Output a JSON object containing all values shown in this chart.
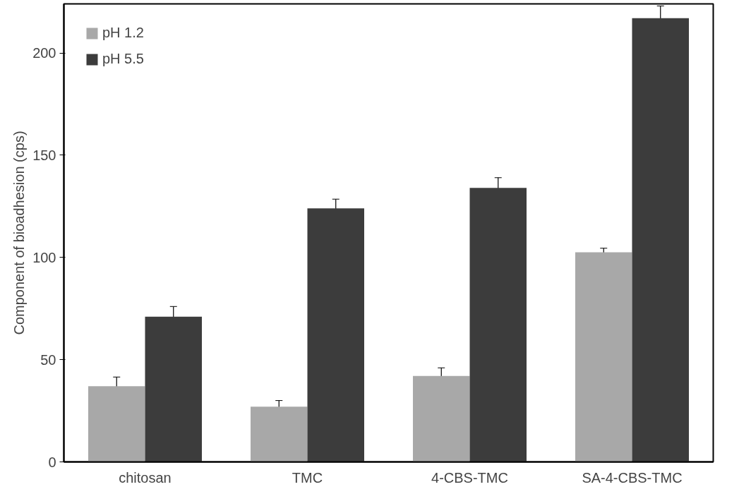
{
  "chart_data": {
    "type": "bar",
    "ylabel": "Component of bioadhesion (cps)",
    "categories": [
      "chitosan",
      "TMC",
      "4-CBS-TMC",
      "SA-4-CBS-TMC"
    ],
    "series": [
      {
        "name": "pH 1.2",
        "color": "#a8a8a8",
        "values": [
          37,
          27,
          42,
          102.5
        ],
        "errors": [
          4.5,
          3,
          4,
          2
        ]
      },
      {
        "name": "pH 5.5",
        "color": "#3c3c3c",
        "values": [
          71,
          124,
          134,
          217
        ],
        "errors": [
          5,
          4.5,
          5,
          6
        ]
      }
    ],
    "ylim": [
      0,
      224
    ],
    "yticks": [
      0,
      50,
      100,
      150,
      200
    ],
    "grid": false,
    "legend": "top left"
  }
}
